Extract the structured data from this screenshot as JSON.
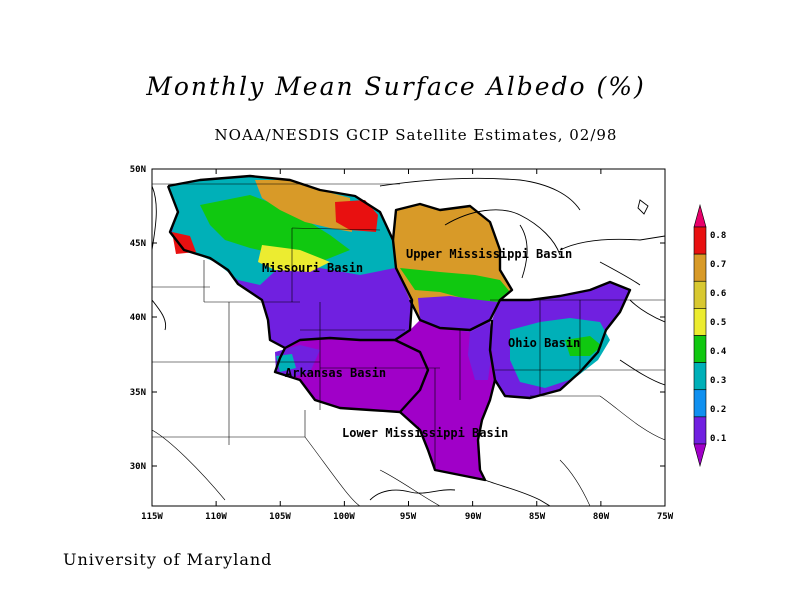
{
  "title": "Monthly Mean Surface Albedo (%)",
  "subtitle": "NOAA/NESDIS GCIP Satellite Estimates, 02/98",
  "footer": "University of Maryland",
  "map": {
    "lon_ticks": [
      "115W",
      "110W",
      "105W",
      "100W",
      "95W",
      "90W",
      "85W",
      "80W",
      "75W"
    ],
    "lat_ticks": [
      "50N",
      "45N",
      "40N",
      "35N",
      "30N"
    ],
    "basins": [
      {
        "id": "missouri",
        "label": "Missouri Basin"
      },
      {
        "id": "upper-mississippi",
        "label": "Upper Mississippi Basin"
      },
      {
        "id": "ohio",
        "label": "Ohio Basin"
      },
      {
        "id": "arkansas",
        "label": "Arkansas Basin"
      },
      {
        "id": "lower-mississippi",
        "label": "Lower Mississippi Basin"
      }
    ]
  },
  "colorbar": {
    "labels": [
      "0.8",
      "0.7",
      "0.6",
      "0.5",
      "0.4",
      "0.3",
      "0.2",
      "0.1"
    ],
    "colors": [
      "#e8006a",
      "#e81010",
      "#d89a28",
      "#d8c830",
      "#ecec30",
      "#10c810",
      "#00b0b8",
      "#1090f0",
      "#7020e0",
      "#a000c8"
    ]
  }
}
